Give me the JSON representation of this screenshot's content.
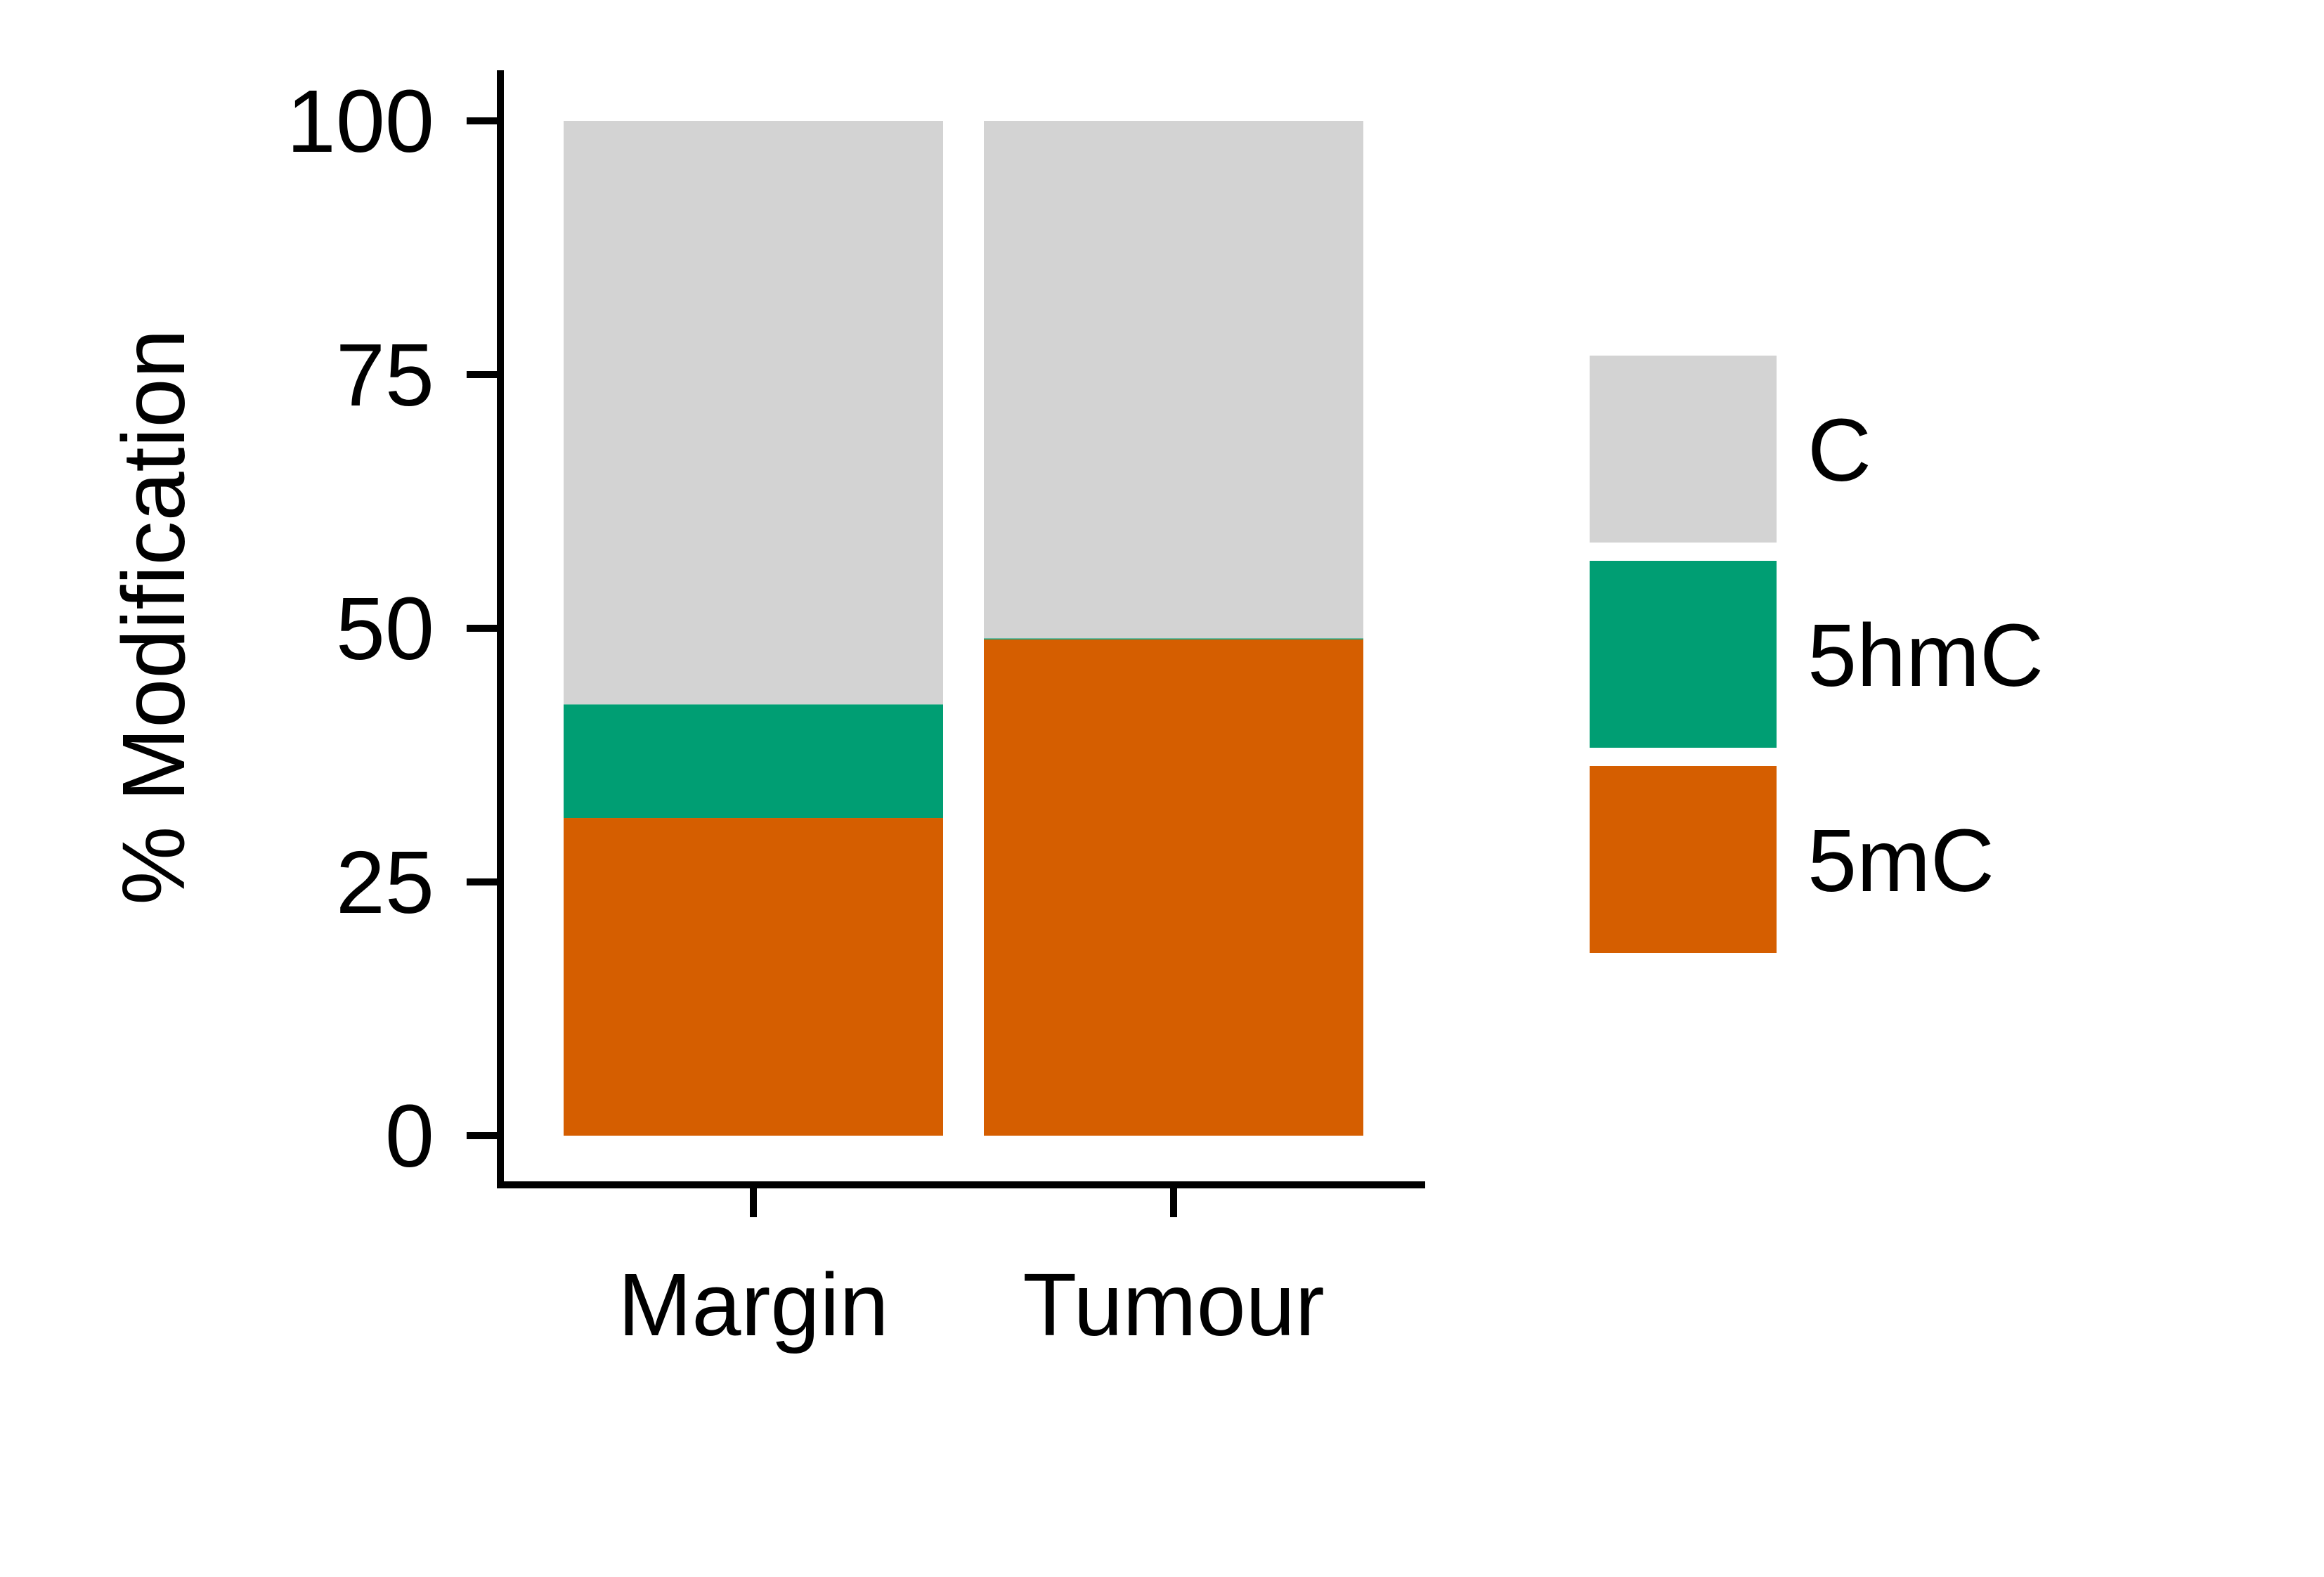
{
  "chart_data": {
    "type": "bar",
    "stacked": true,
    "categories": [
      "Margin",
      "Tumour"
    ],
    "series": [
      {
        "name": "5mC",
        "color": "#D55E00",
        "values": [
          31.3,
          48.9
        ]
      },
      {
        "name": "5hmC",
        "color": "#009E73",
        "values": [
          11.2,
          0.1
        ]
      },
      {
        "name": "C",
        "color": "#D3D3D3",
        "values": [
          57.5,
          51.0
        ]
      }
    ],
    "ylabel": "% Modification",
    "xlabel": "",
    "ylim": [
      0,
      100
    ],
    "yticks": [
      0,
      25,
      50,
      75,
      100
    ],
    "grid": false,
    "legend": {
      "placement": "right",
      "order": [
        "C",
        "5hmC",
        "5mC"
      ]
    }
  }
}
